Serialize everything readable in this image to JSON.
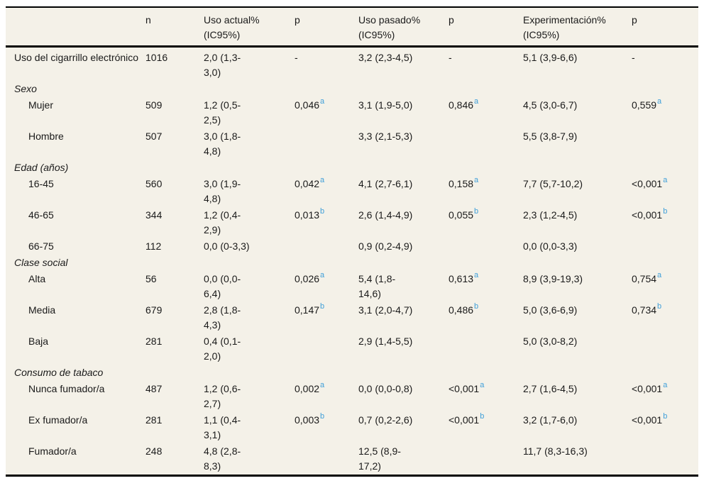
{
  "colors": {
    "table_background": "#f4f1e8",
    "rule": "#000000",
    "text": "#1a1a1a",
    "footnote_blue": "#3f9fd9"
  },
  "table": {
    "columns": [
      "",
      "n",
      "Uso actual% (IC95%)",
      "p",
      "Uso pasado% (IC95%)",
      "p",
      "Experimentación% (IC95%)",
      "p"
    ],
    "rows": [
      {
        "label": "Uso del cigarrillo electrónico",
        "style": "top",
        "values": [
          "1016",
          "2,0 (1,3-3,0)",
          "-",
          "3,2 (2,3-4,5)",
          "-",
          "5,1 (3,9-6,6)",
          "-"
        ]
      },
      {
        "label": "Sexo",
        "style": "section"
      },
      {
        "label": "Mujer",
        "style": "item",
        "values": [
          "509",
          "1,2 (0,5-2,5)",
          "0,046",
          "3,1 (1,9-5,0)",
          "0,846",
          "4,5 (3,0-6,7)",
          "0,559"
        ],
        "sups": {
          "2": "a",
          "4": "a",
          "6": "a"
        }
      },
      {
        "label": "Hombre",
        "style": "item",
        "values": [
          "507",
          "3,0 (1,8-4,8)",
          "",
          "3,3 (2,1-5,3)",
          "",
          "5,5 (3,8-7,9)",
          ""
        ]
      },
      {
        "label": "Edad (años)",
        "style": "section"
      },
      {
        "label": "16-45",
        "style": "item",
        "values": [
          "560",
          "3,0 (1,9-4,8)",
          "0,042",
          "4,1 (2,7-6,1)",
          "0,158",
          "7,7 (5,7-10,2)",
          "<0,001"
        ],
        "sups": {
          "2": "a",
          "4": "a",
          "6": "a"
        }
      },
      {
        "label": "46-65",
        "style": "item",
        "values": [
          "344",
          "1,2 (0,4-2,9)",
          "0,013",
          "2,6 (1,4-4,9)",
          "0,055",
          "2,3 (1,2-4,5)",
          "<0,001"
        ],
        "sups": {
          "2": "b",
          "4": "b",
          "6": "b"
        }
      },
      {
        "label": "66-75",
        "style": "item",
        "values": [
          "112",
          "0,0 (0-3,3)",
          "",
          "0,9 (0,2-4,9)",
          "",
          "0,0 (0,0-3,3)",
          ""
        ]
      },
      {
        "label": "Clase social",
        "style": "section"
      },
      {
        "label": "Alta",
        "style": "item",
        "values": [
          "56",
          "0,0 (0,0-6,4)",
          "0,026",
          "5,4 (1,8-14,6)",
          "0,613",
          "8,9 (3,9-19,3)",
          "0,754"
        ],
        "sups": {
          "2": "a",
          "4": "a",
          "6": "a"
        }
      },
      {
        "label": "Media",
        "style": "item",
        "values": [
          "679",
          "2,8 (1,8-4,3)",
          "0,147",
          "3,1 (2,0-4,7)",
          "0,486",
          "5,0 (3,6-6,9)",
          "0,734"
        ],
        "sups": {
          "2": "b",
          "4": "b",
          "6": "b"
        }
      },
      {
        "label": "Baja",
        "style": "item",
        "values": [
          "281",
          "0,4 (0,1-2,0)",
          "",
          "2,9 (1,4-5,5)",
          "",
          "5,0 (3,0-8,2)",
          ""
        ]
      },
      {
        "label": "Consumo de tabaco",
        "style": "section"
      },
      {
        "label": "Nunca fumador/a",
        "style": "item",
        "values": [
          "487",
          "1,2 (0,6-2,7)",
          "0,002",
          "0,0 (0,0-0,8)",
          "<0,001",
          "2,7 (1,6-4,5)",
          "<0,001"
        ],
        "sups": {
          "2": "a",
          "4": "a",
          "6": "a"
        }
      },
      {
        "label": "Ex fumador/a",
        "style": "item",
        "values": [
          "281",
          "1,1 (0,4-3,1)",
          "0,003",
          "0,7 (0,2-2,6)",
          "<0,001",
          "3,2 (1,7-6,0)",
          "<0,001"
        ],
        "sups": {
          "2": "b",
          "4": "b",
          "6": "b"
        }
      },
      {
        "label": "Fumador/a",
        "style": "item",
        "values": [
          "248",
          "4,8 (2,8-8,3)",
          "",
          "12,5 (8,9-17,2)",
          "",
          "11,7 (8,3-16,3)",
          ""
        ]
      }
    ]
  }
}
